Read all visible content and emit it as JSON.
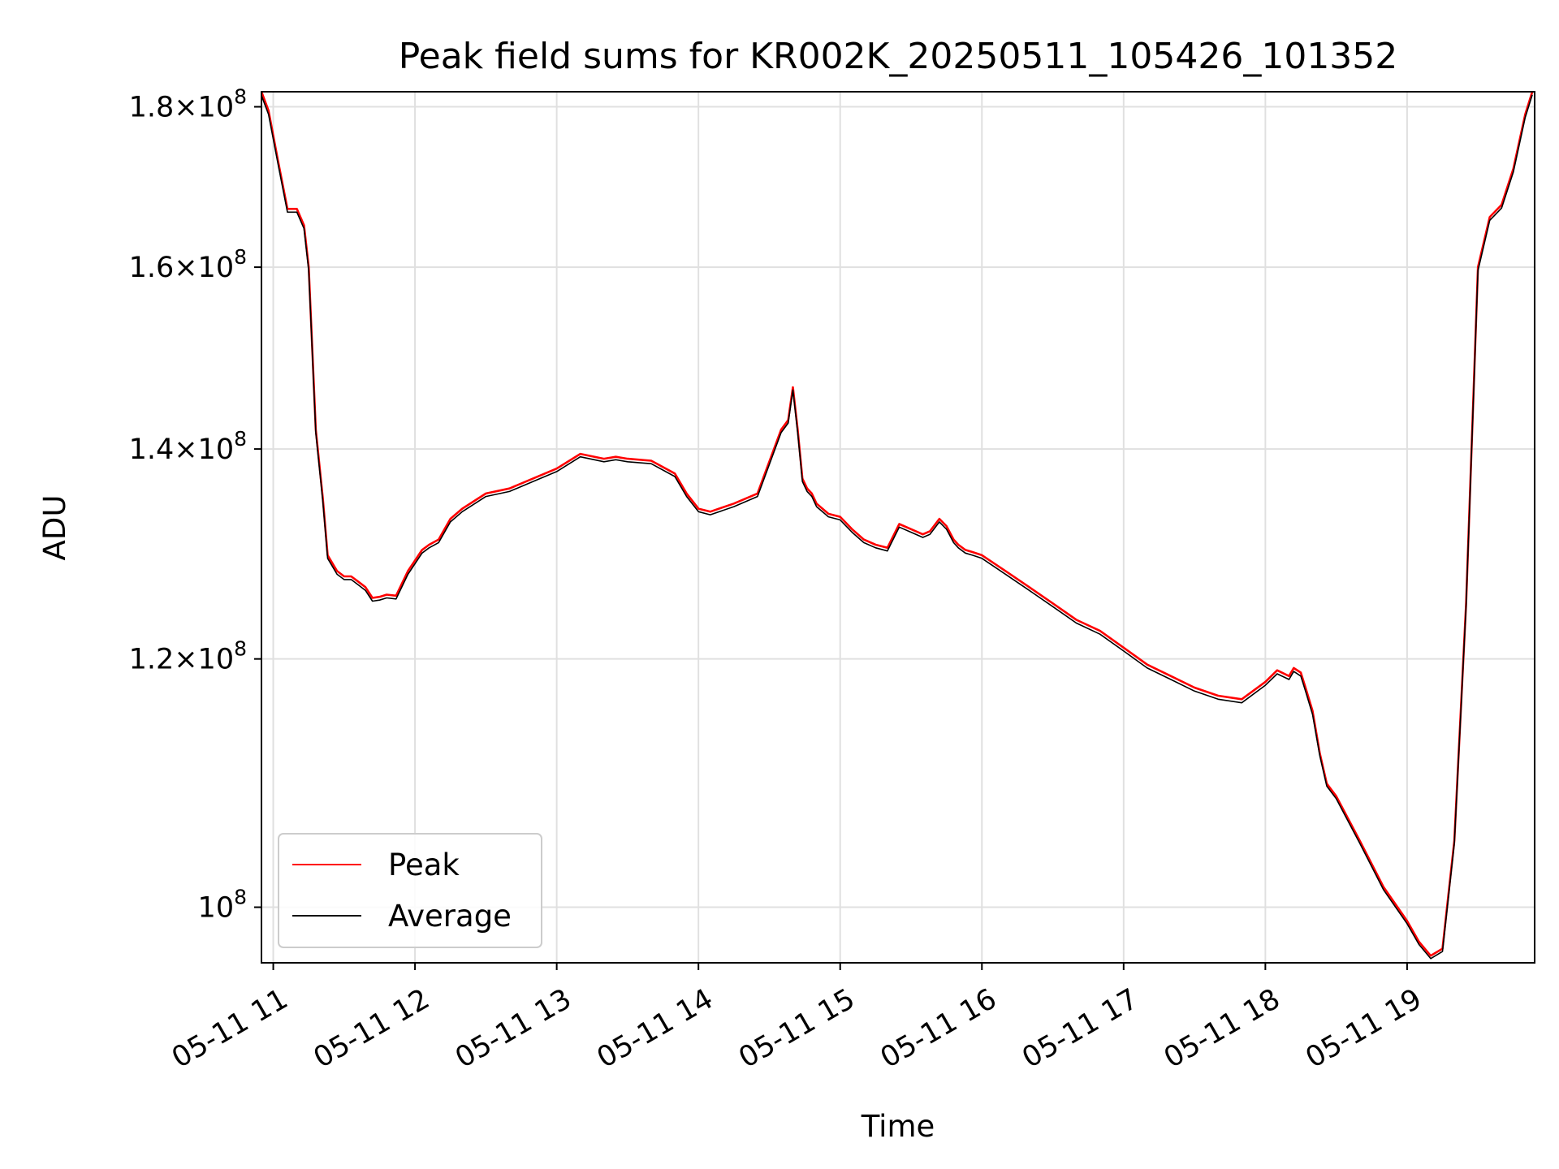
{
  "chart_data": {
    "type": "line",
    "title": "Peak field sums for KR002K_20250511_105426_101352",
    "xlabel": "Time",
    "ylabel": "ADU",
    "x_unit": "hours of day on 2025-05-11",
    "xlim": [
      "05-11 10:55",
      "05-11 19:54"
    ],
    "ylim": [
      96000000,
      182000000
    ],
    "y_scale": "log",
    "grid": true,
    "legend": "lower-left",
    "x_ticks": [
      "05-11 11",
      "05-11 12",
      "05-11 13",
      "05-11 14",
      "05-11 15",
      "05-11 16",
      "05-11 17",
      "05-11 18",
      "05-11 19"
    ],
    "y_ticks": [
      {
        "base": "10",
        "exp": "8",
        "value": 100000000
      },
      {
        "mant": "1.2",
        "exp": "8",
        "value": 120000000
      },
      {
        "mant": "1.4",
        "exp": "8",
        "value": 140000000
      },
      {
        "mant": "1.6",
        "exp": "8",
        "value": 160000000
      },
      {
        "mant": "1.8",
        "exp": "8",
        "value": 180000000
      }
    ],
    "series": [
      {
        "name": "Peak",
        "color": "#ff0000",
        "x": [
          "10:55",
          "10:58",
          "11:02",
          "11:06",
          "11:10",
          "11:13",
          "11:15",
          "11:18",
          "11:21",
          "11:23",
          "11:27",
          "11:30",
          "11:33",
          "11:36",
          "11:39",
          "11:42",
          "11:45",
          "11:48",
          "11:52",
          "11:57",
          "12:03",
          "12:06",
          "12:10",
          "12:15",
          "12:20",
          "12:30",
          "12:40",
          "12:50",
          "13:00",
          "13:10",
          "13:20",
          "13:25",
          "13:30",
          "13:40",
          "13:50",
          "13:55",
          "14:00",
          "14:05",
          "14:15",
          "14:25",
          "14:35",
          "14:38",
          "14:40",
          "14:42",
          "14:44",
          "14:46",
          "14:48",
          "14:50",
          "14:55",
          "15:00",
          "15:05",
          "15:10",
          "15:15",
          "15:20",
          "15:25",
          "15:30",
          "15:35",
          "15:38",
          "15:42",
          "15:45",
          "15:48",
          "15:50",
          "15:53",
          "15:56",
          "16:00",
          "16:10",
          "16:20",
          "16:30",
          "16:40",
          "16:50",
          "17:00",
          "17:10",
          "17:20",
          "17:30",
          "17:40",
          "17:50",
          "18:00",
          "18:05",
          "18:10",
          "18:12",
          "18:15",
          "18:17",
          "18:20",
          "18:23",
          "18:26",
          "18:30",
          "18:40",
          "18:50",
          "19:00",
          "19:05",
          "19:10",
          "19:15",
          "19:20",
          "19:25",
          "19:30",
          "19:35",
          "19:40",
          "19:45",
          "19:50",
          "19:53"
        ],
        "values": [
          182000000,
          179500000,
          173000000,
          167000000,
          167000000,
          165000000,
          160000000,
          142000000,
          135000000,
          129500000,
          128000000,
          127500000,
          127500000,
          127000000,
          126500000,
          125500000,
          125600000,
          125800000,
          125700000,
          128000000,
          130000000,
          130500000,
          131000000,
          133000000,
          134000000,
          135500000,
          136000000,
          137000000,
          138000000,
          139500000,
          139000000,
          139200000,
          139000000,
          138800000,
          137500000,
          135500000,
          134000000,
          133700000,
          134500000,
          135500000,
          142000000,
          143000000,
          146500000,
          142000000,
          137000000,
          136000000,
          135500000,
          134500000,
          133500000,
          133200000,
          132000000,
          131000000,
          130500000,
          130200000,
          132500000,
          132000000,
          131500000,
          131800000,
          133000000,
          132300000,
          131000000,
          130500000,
          130000000,
          129800000,
          129500000,
          128000000,
          126500000,
          125000000,
          123500000,
          122500000,
          121000000,
          119500000,
          118500000,
          117500000,
          116800000,
          116500000,
          118000000,
          119000000,
          118500000,
          119200000,
          118800000,
          117500000,
          115500000,
          112000000,
          109500000,
          108500000,
          105000000,
          101500000,
          99000000,
          97500000,
          96500000,
          97000000,
          105000000,
          125000000,
          160000000,
          166000000,
          167500000,
          172000000,
          179000000,
          182000000
        ]
      },
      {
        "name": "Average",
        "color": "#000000",
        "x": [
          "10:55",
          "10:58",
          "11:02",
          "11:06",
          "11:10",
          "11:13",
          "11:15",
          "11:18",
          "11:21",
          "11:23",
          "11:27",
          "11:30",
          "11:33",
          "11:36",
          "11:39",
          "11:42",
          "11:45",
          "11:48",
          "11:52",
          "11:57",
          "12:03",
          "12:06",
          "12:10",
          "12:15",
          "12:20",
          "12:30",
          "12:40",
          "12:50",
          "13:00",
          "13:10",
          "13:20",
          "13:25",
          "13:30",
          "13:40",
          "13:50",
          "13:55",
          "14:00",
          "14:05",
          "14:15",
          "14:25",
          "14:35",
          "14:38",
          "14:40",
          "14:42",
          "14:44",
          "14:46",
          "14:48",
          "14:50",
          "14:55",
          "15:00",
          "15:05",
          "15:10",
          "15:15",
          "15:20",
          "15:25",
          "15:30",
          "15:35",
          "15:38",
          "15:42",
          "15:45",
          "15:48",
          "15:50",
          "15:53",
          "15:56",
          "16:00",
          "16:10",
          "16:20",
          "16:30",
          "16:40",
          "16:50",
          "17:00",
          "17:10",
          "17:20",
          "17:30",
          "17:40",
          "17:50",
          "18:00",
          "18:05",
          "18:10",
          "18:12",
          "18:15",
          "18:17",
          "18:20",
          "18:23",
          "18:26",
          "18:30",
          "18:40",
          "18:50",
          "19:00",
          "19:05",
          "19:10",
          "19:15",
          "19:20",
          "19:25",
          "19:30",
          "19:35",
          "19:40",
          "19:45",
          "19:50",
          "19:53"
        ],
        "values": [
          181500000,
          179000000,
          172600000,
          166600000,
          166600000,
          164600000,
          159600000,
          141700000,
          134700000,
          129200000,
          127700000,
          127200000,
          127200000,
          126700000,
          126200000,
          125200000,
          125300000,
          125500000,
          125400000,
          127700000,
          129700000,
          130200000,
          130700000,
          132700000,
          133700000,
          135200000,
          135700000,
          136700000,
          137700000,
          139200000,
          138700000,
          138900000,
          138700000,
          138500000,
          137200000,
          135200000,
          133700000,
          133400000,
          134200000,
          135200000,
          141700000,
          142700000,
          146200000,
          141700000,
          136700000,
          135700000,
          135200000,
          134200000,
          133200000,
          132900000,
          131700000,
          130700000,
          130200000,
          129900000,
          132200000,
          131700000,
          131200000,
          131500000,
          132700000,
          132000000,
          130700000,
          130200000,
          129700000,
          129500000,
          129200000,
          127700000,
          126200000,
          124700000,
          123200000,
          122200000,
          120700000,
          119200000,
          118200000,
          117200000,
          116500000,
          116200000,
          117700000,
          118700000,
          118200000,
          118900000,
          118500000,
          117200000,
          115200000,
          111800000,
          109300000,
          108300000,
          104800000,
          101300000,
          98800000,
          97300000,
          96300000,
          96800000,
          104800000,
          124800000,
          159600000,
          165600000,
          167100000,
          171600000,
          178600000,
          181600000
        ]
      }
    ]
  }
}
